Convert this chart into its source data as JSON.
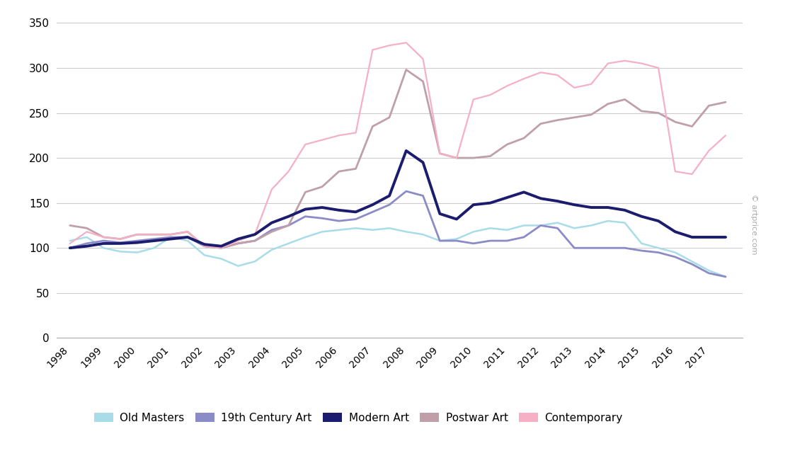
{
  "years": [
    1998.0,
    1998.5,
    1999.0,
    1999.5,
    2000.0,
    2000.5,
    2001.0,
    2001.5,
    2002.0,
    2002.5,
    2003.0,
    2003.5,
    2004.0,
    2004.5,
    2005.0,
    2005.5,
    2006.0,
    2006.5,
    2007.0,
    2007.5,
    2008.0,
    2008.5,
    2009.0,
    2009.5,
    2010.0,
    2010.5,
    2011.0,
    2011.5,
    2012.0,
    2012.5,
    2013.0,
    2013.5,
    2014.0,
    2014.5,
    2015.0,
    2015.5,
    2016.0,
    2016.5,
    2017.0,
    2017.5
  ],
  "old_masters": [
    108,
    112,
    100,
    96,
    95,
    100,
    112,
    108,
    92,
    88,
    80,
    85,
    98,
    105,
    112,
    118,
    120,
    122,
    120,
    122,
    118,
    115,
    108,
    110,
    118,
    122,
    120,
    125,
    125,
    128,
    122,
    125,
    130,
    128,
    105,
    100,
    95,
    85,
    75,
    68
  ],
  "nineteenth_century": [
    100,
    105,
    108,
    106,
    108,
    110,
    112,
    112,
    102,
    100,
    105,
    108,
    120,
    125,
    135,
    133,
    130,
    132,
    140,
    148,
    163,
    158,
    108,
    108,
    105,
    108,
    108,
    112,
    125,
    122,
    100,
    100,
    100,
    100,
    97,
    95,
    90,
    82,
    72,
    68
  ],
  "modern_art": [
    100,
    102,
    105,
    105,
    106,
    108,
    110,
    112,
    104,
    102,
    110,
    115,
    128,
    135,
    143,
    145,
    142,
    140,
    148,
    158,
    208,
    195,
    138,
    132,
    148,
    150,
    156,
    162,
    155,
    152,
    148,
    145,
    145,
    142,
    135,
    130,
    118,
    112,
    112,
    112
  ],
  "postwar_art": [
    125,
    122,
    112,
    110,
    115,
    115,
    115,
    118,
    102,
    100,
    105,
    108,
    118,
    125,
    162,
    168,
    185,
    188,
    235,
    245,
    298,
    285,
    205,
    200,
    200,
    202,
    215,
    222,
    238,
    242,
    245,
    248,
    260,
    265,
    252,
    250,
    240,
    235,
    258,
    262
  ],
  "contemporary": [
    105,
    118,
    112,
    110,
    115,
    115,
    115,
    118,
    102,
    100,
    108,
    115,
    165,
    185,
    215,
    220,
    225,
    228,
    320,
    325,
    328,
    310,
    205,
    200,
    265,
    270,
    280,
    288,
    295,
    292,
    278,
    282,
    305,
    308,
    305,
    300,
    185,
    182,
    208,
    225
  ],
  "colors": {
    "old_masters": "#a8dce8",
    "nineteenth_century": "#8b8bc8",
    "modern_art": "#1c1c6e",
    "postwar_art": "#c0a0a8",
    "contemporary": "#f5b0c5"
  },
  "linewidths": {
    "old_masters": 1.8,
    "nineteenth_century": 2.0,
    "modern_art": 2.8,
    "postwar_art": 2.0,
    "contemporary": 1.6
  },
  "ylim": [
    0,
    360
  ],
  "yticks": [
    0,
    50,
    100,
    150,
    200,
    250,
    300,
    350
  ],
  "xtick_years": [
    1998,
    1999,
    2000,
    2001,
    2002,
    2003,
    2004,
    2005,
    2006,
    2007,
    2008,
    2009,
    2010,
    2011,
    2012,
    2013,
    2014,
    2015,
    2016,
    2017
  ],
  "background_color": "#ffffff",
  "watermark": "© artprice.com"
}
